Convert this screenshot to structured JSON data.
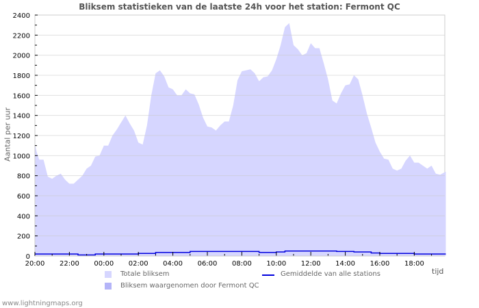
{
  "title": "Bliksem statistieken van de laatste 24h voor het station: Fermont QC",
  "ylabel": "Aantal per uur",
  "xunit": "tijd",
  "footer": "www.lightningmaps.org",
  "colors": {
    "total": "#d6d6ff",
    "station": "#b4b4f8",
    "average": "#0000dd",
    "grid": "#cccccc",
    "axis": "#000000"
  },
  "legend": [
    {
      "label": "Totale bliksem",
      "type": "area",
      "color": "#d6d6ff"
    },
    {
      "label": "Bliksem waargenomen door Fermont QC",
      "type": "area",
      "color": "#b4b4f8"
    },
    {
      "label": "Gemiddelde van alle stations",
      "type": "line",
      "color": "#0000dd"
    }
  ],
  "chart_data": {
    "type": "area",
    "title": "Bliksem statistieken van de laatste 24h voor het station: Fermont QC",
    "xlabel": "tijd",
    "ylabel": "Aantal per uur",
    "ylim": [
      0,
      2400
    ],
    "yticks": [
      0,
      200,
      400,
      600,
      800,
      1000,
      1200,
      1400,
      1600,
      1800,
      2000,
      2200,
      2400
    ],
    "xtick_labels": [
      "20:00",
      "22:00",
      "00:00",
      "02:00",
      "04:00",
      "06:00",
      "08:00",
      "10:00",
      "12:00",
      "14:00",
      "16:00",
      "18:00"
    ],
    "x_range_hours": [
      0,
      23.83
    ],
    "grid": true,
    "legend_position": "bottom",
    "series": [
      {
        "name": "Totale bliksem",
        "x_hours": [
          0,
          0.1,
          0.25,
          0.5,
          0.75,
          1.0,
          1.25,
          1.5,
          1.75,
          2.0,
          2.25,
          2.5,
          2.75,
          3.0,
          3.25,
          3.5,
          3.75,
          4.0,
          4.25,
          4.5,
          4.75,
          5.0,
          5.25,
          5.5,
          5.75,
          6.0,
          6.25,
          6.5,
          6.75,
          7.0,
          7.25,
          7.5,
          7.75,
          8.0,
          8.25,
          8.5,
          8.75,
          9.0,
          9.25,
          9.5,
          9.75,
          10.0,
          10.25,
          10.5,
          10.75,
          11.0,
          11.25,
          11.5,
          11.75,
          12.0,
          12.25,
          12.5,
          12.75,
          13.0,
          13.25,
          13.5,
          13.75,
          14.0,
          14.25,
          14.5,
          14.75,
          15.0,
          15.25,
          15.5,
          15.75,
          16.0,
          16.25,
          16.5,
          16.75,
          17.0,
          17.25,
          17.5,
          17.75,
          18.0,
          18.25,
          18.5,
          18.75,
          19.0,
          19.25,
          19.5,
          19.75,
          20.0,
          20.25,
          20.5,
          20.75,
          21.0,
          21.25,
          21.5,
          21.75,
          22.0,
          22.25,
          22.5,
          22.75,
          23.0,
          23.25,
          23.5,
          23.83
        ],
        "values": [
          1120,
          1040,
          960,
          960,
          790,
          770,
          800,
          820,
          760,
          720,
          720,
          760,
          800,
          870,
          900,
          990,
          1000,
          1100,
          1100,
          1200,
          1260,
          1330,
          1400,
          1320,
          1250,
          1130,
          1110,
          1300,
          1600,
          1820,
          1850,
          1790,
          1680,
          1660,
          1600,
          1600,
          1660,
          1620,
          1610,
          1510,
          1380,
          1290,
          1280,
          1250,
          1300,
          1340,
          1340,
          1500,
          1750,
          1840,
          1850,
          1860,
          1820,
          1740,
          1780,
          1790,
          1850,
          1960,
          2100,
          2280,
          2320,
          2100,
          2060,
          2000,
          2020,
          2120,
          2070,
          2070,
          1920,
          1760,
          1550,
          1520,
          1620,
          1700,
          1710,
          1800,
          1760,
          1600,
          1420,
          1280,
          1130,
          1040,
          970,
          960,
          870,
          850,
          870,
          950,
          1000,
          930,
          930,
          900,
          870,
          900,
          820,
          810,
          840
        ]
      },
      {
        "name": "Bliksem waargenomen door Fermont QC",
        "x_hours": [
          0,
          23.83
        ],
        "values": [
          0,
          0
        ]
      },
      {
        "name": "Gemiddelde van alle stations",
        "x_hours": [
          0,
          2.0,
          2.5,
          3.5,
          6.0,
          7.0,
          9.0,
          11.0,
          13.0,
          14.0,
          14.5,
          17.5,
          18.5,
          19.5,
          20.0,
          22.0,
          23.83
        ],
        "values": [
          20,
          20,
          10,
          20,
          25,
          35,
          45,
          45,
          35,
          40,
          50,
          45,
          40,
          30,
          25,
          20,
          20
        ]
      }
    ]
  }
}
